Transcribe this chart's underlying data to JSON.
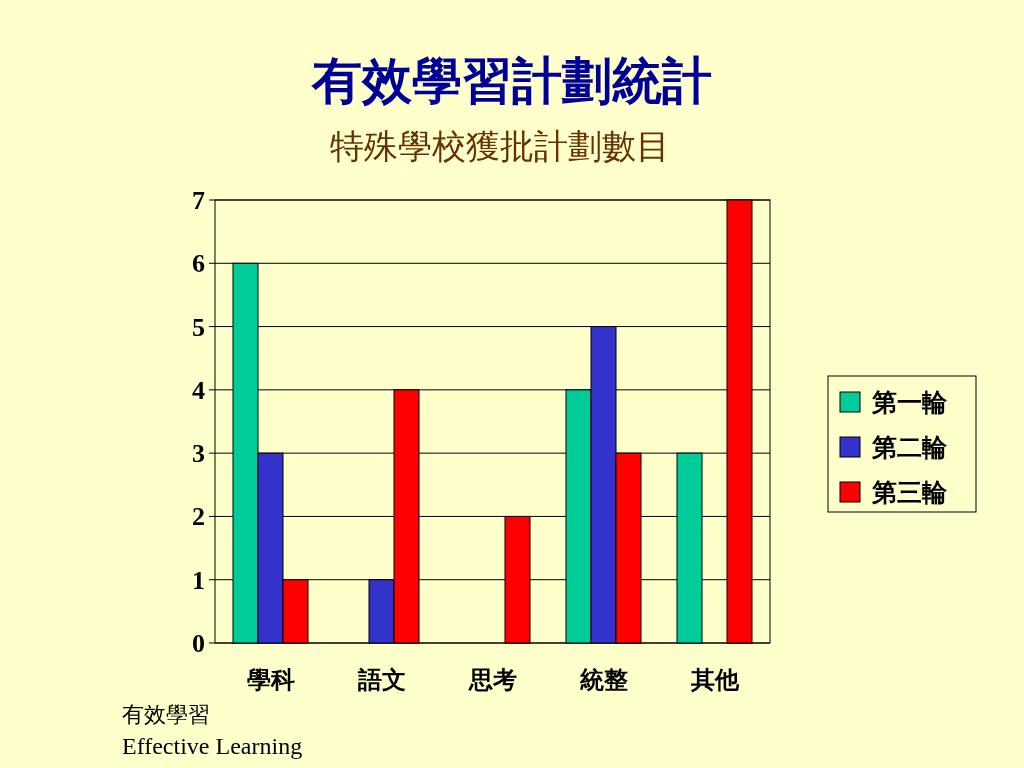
{
  "chart_data": {
    "type": "bar",
    "title": "有效學習計劃統計",
    "subtitle": "特殊學校獲批計劃數目",
    "categories": [
      "學科",
      "語文",
      "思考",
      "統整",
      "其他"
    ],
    "series": [
      {
        "name": "第一輪",
        "color": "#00cc99",
        "values": [
          6,
          0,
          0,
          4,
          3
        ]
      },
      {
        "name": "第二輪",
        "color": "#3333cc",
        "values": [
          3,
          1,
          0,
          5,
          0
        ]
      },
      {
        "name": "第三輪",
        "color": "#ff0000",
        "values": [
          1,
          4,
          2,
          3,
          7
        ]
      }
    ],
    "ylim": [
      0,
      7
    ],
    "yticks": [
      0,
      1,
      2,
      3,
      4,
      5,
      6,
      7
    ],
    "grid": "y",
    "legend": "right",
    "annotations": [
      "有效學習",
      "Effective Learning"
    ]
  }
}
